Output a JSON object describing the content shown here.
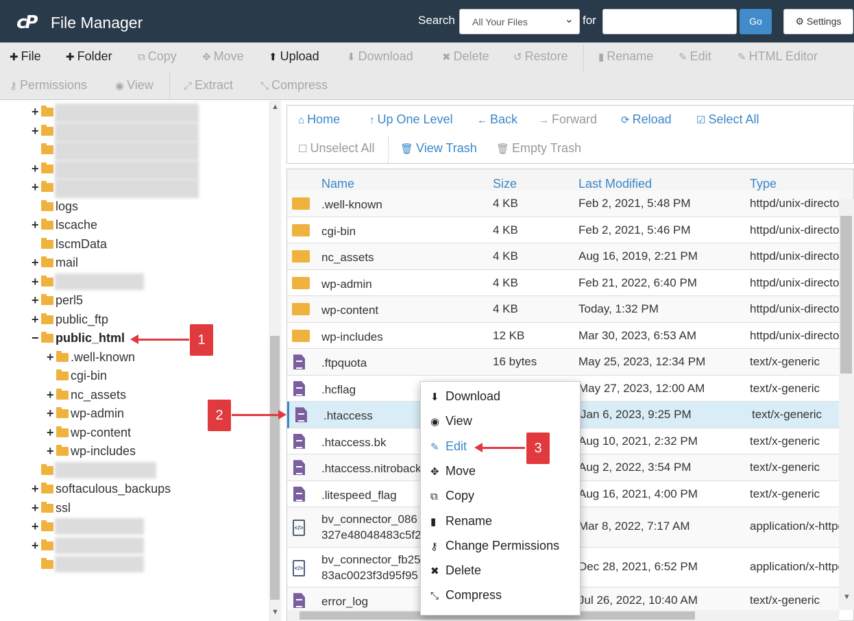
{
  "header": {
    "logo": "cP",
    "title": "File Manager",
    "search_label": "Search",
    "search_scope": "All Your Files",
    "for_label": "for",
    "search_value": "",
    "go": "Go",
    "settings": "Settings"
  },
  "toolbar": {
    "row1": [
      {
        "label": "File",
        "icon": "plus",
        "enabled": true
      },
      {
        "label": "Folder",
        "icon": "plus",
        "enabled": true
      },
      {
        "label": "Copy",
        "icon": "copy",
        "enabled": false
      },
      {
        "label": "Move",
        "icon": "move",
        "enabled": false
      },
      {
        "label": "Upload",
        "icon": "upload",
        "enabled": true
      },
      {
        "label": "Download",
        "icon": "download",
        "enabled": false
      },
      {
        "label": "Delete",
        "icon": "x",
        "enabled": false
      },
      {
        "label": "Restore",
        "icon": "undo",
        "enabled": false
      },
      {
        "label": "Rename",
        "icon": "file",
        "enabled": false
      },
      {
        "label": "Edit",
        "icon": "pencil",
        "enabled": false
      },
      {
        "label": "HTML Editor",
        "icon": "edit",
        "enabled": false
      }
    ],
    "row2": [
      {
        "label": "Permissions",
        "icon": "key",
        "enabled": false
      },
      {
        "label": "View",
        "icon": "eye",
        "enabled": false
      },
      {
        "label": "Extract",
        "icon": "expand",
        "enabled": false
      },
      {
        "label": "Compress",
        "icon": "compress",
        "enabled": false
      }
    ]
  },
  "tree": [
    {
      "label": "",
      "plus": true,
      "blurred": true
    },
    {
      "label": "",
      "plus": true,
      "blurred": true
    },
    {
      "label": "",
      "plus": false,
      "blurred": true
    },
    {
      "label": "",
      "plus": true,
      "blurred": true
    },
    {
      "label": "",
      "plus": true,
      "blurred": true
    },
    {
      "label": "logs",
      "plus": false
    },
    {
      "label": "lscache",
      "plus": true
    },
    {
      "label": "lscmData",
      "plus": false
    },
    {
      "label": "mail",
      "plus": true
    },
    {
      "label": "",
      "plus": true,
      "blurred": true
    },
    {
      "label": "perl5",
      "plus": true
    },
    {
      "label": "public_ftp",
      "plus": true
    },
    {
      "label": "public_html",
      "plus": "minus",
      "bold": true
    },
    {
      "label": ".well-known",
      "plus": true,
      "indent": 1
    },
    {
      "label": "cgi-bin",
      "plus": false,
      "indent": 1
    },
    {
      "label": "nc_assets",
      "plus": true,
      "indent": 1
    },
    {
      "label": "wp-admin",
      "plus": true,
      "indent": 1
    },
    {
      "label": "wp-content",
      "plus": true,
      "indent": 1
    },
    {
      "label": "wp-includes",
      "plus": true,
      "indent": 1
    },
    {
      "label": "",
      "plus": false,
      "blurred": true
    },
    {
      "label": "softaculous_backups",
      "plus": true
    },
    {
      "label": "ssl",
      "plus": true
    },
    {
      "label": "",
      "plus": true,
      "blurred": true
    },
    {
      "label": "",
      "plus": true,
      "blurred": true
    },
    {
      "label": "",
      "plus": false,
      "blurred": true
    }
  ],
  "nav": {
    "row1": [
      {
        "label": "Home",
        "icon": "home",
        "enabled": true
      },
      {
        "label": "Up One Level",
        "icon": "arrow-up",
        "enabled": true
      },
      {
        "label": "Back",
        "icon": "arrow-left",
        "enabled": true
      },
      {
        "label": "Forward",
        "icon": "arrow-right",
        "enabled": false
      },
      {
        "label": "Reload",
        "icon": "refresh",
        "enabled": true
      },
      {
        "label": "Select All",
        "icon": "check-square",
        "enabled": true
      }
    ],
    "row2": [
      {
        "label": "Unselect All",
        "icon": "square",
        "enabled": false
      },
      {
        "label": "View Trash",
        "icon": "trash",
        "enabled": true
      },
      {
        "label": "Empty Trash",
        "icon": "trash",
        "enabled": false
      }
    ]
  },
  "table": {
    "columns": [
      "Name",
      "Size",
      "Last Modified",
      "Type"
    ],
    "rows": [
      {
        "icon": "folder",
        "name": ".well-known",
        "size": "4 KB",
        "modified": "Feb 2, 2021, 5:48 PM",
        "type": "httpd/unix-directory"
      },
      {
        "icon": "folder",
        "name": "cgi-bin",
        "size": "4 KB",
        "modified": "Feb 2, 2021, 5:46 PM",
        "type": "httpd/unix-directory"
      },
      {
        "icon": "folder",
        "name": "nc_assets",
        "size": "4 KB",
        "modified": "Aug 16, 2019, 2:21 PM",
        "type": "httpd/unix-directory"
      },
      {
        "icon": "folder",
        "name": "wp-admin",
        "size": "4 KB",
        "modified": "Feb 21, 2022, 6:40 PM",
        "type": "httpd/unix-directory"
      },
      {
        "icon": "folder",
        "name": "wp-content",
        "size": "4 KB",
        "modified": "Today, 1:32 PM",
        "type": "httpd/unix-directory"
      },
      {
        "icon": "folder",
        "name": "wp-includes",
        "size": "12 KB",
        "modified": "Mar 30, 2023, 6:53 AM",
        "type": "httpd/unix-directory"
      },
      {
        "icon": "text",
        "name": ".ftpquota",
        "size": "16 bytes",
        "modified": "May 25, 2023, 12:34 PM",
        "type": "text/x-generic"
      },
      {
        "icon": "text",
        "name": ".hcflag",
        "size": "",
        "modified": "May 27, 2023, 12:00 AM",
        "type": "text/x-generic"
      },
      {
        "icon": "text",
        "name": ".htaccess",
        "size": "",
        "modified": "Jan 6, 2023, 9:25 PM",
        "type": "text/x-generic",
        "selected": true
      },
      {
        "icon": "text",
        "name": ".htaccess.bk",
        "size": "",
        "modified": "Aug 10, 2021, 2:32 PM",
        "type": "text/x-generic"
      },
      {
        "icon": "text",
        "name": ".htaccess.nitroback",
        "size": "",
        "modified": "Aug 2, 2022, 3:54 PM",
        "type": "text/x-generic"
      },
      {
        "icon": "text",
        "name": ".litespeed_flag",
        "size": "",
        "modified": "Aug 16, 2021, 4:00 PM",
        "type": "text/x-generic"
      },
      {
        "icon": "code",
        "name": "bv_connector_086",
        "name2": "327e48048483c5f2",
        "size": "",
        "modified": "Mar 8, 2022, 7:17 AM",
        "type": "application/x-httpd-php"
      },
      {
        "icon": "code",
        "name": "bv_connector_fb25",
        "name2": "83ac0023f3d95f95",
        "size": "",
        "modified": "Dec 28, 2021, 6:52 PM",
        "type": "application/x-httpd-php"
      },
      {
        "icon": "text",
        "name": "error_log",
        "size": "",
        "modified": "Jul 26, 2022, 10:40 AM",
        "type": "text/x-generic"
      }
    ]
  },
  "context_menu": [
    {
      "label": "Download",
      "icon": "download"
    },
    {
      "label": "View",
      "icon": "eye"
    },
    {
      "label": "Edit",
      "icon": "pencil",
      "highlighted": true
    },
    {
      "label": "Move",
      "icon": "move"
    },
    {
      "label": "Copy",
      "icon": "copy"
    },
    {
      "label": "Rename",
      "icon": "file"
    },
    {
      "label": "Change Permissions",
      "icon": "key"
    },
    {
      "label": "Delete",
      "icon": "x"
    },
    {
      "label": "Compress",
      "icon": "compress"
    }
  ],
  "annotations": [
    "1",
    "2",
    "3"
  ],
  "colors": {
    "header_bg": "#293a4b",
    "accent": "#3a87c8",
    "annotation": "#e0393e",
    "folder": "#f0b23e"
  }
}
